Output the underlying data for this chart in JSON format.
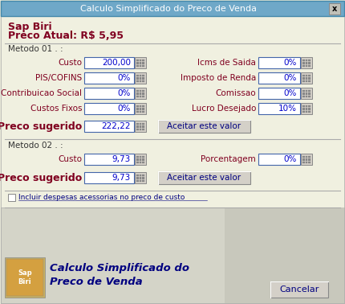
{
  "title": "Calculo Simplificado do Preco de Venda",
  "title_bg": "#6fa8c8",
  "title_fg": "white",
  "bg_color": "#e8e8d8",
  "body_bg": "#f0f0e0",
  "dark_red": "#800020",
  "blue_text": "#0000cc",
  "blue_dark": "#000080",
  "line_color": "#aaaaaa",
  "product_name": "Sap Biri",
  "price_label": "Preco Atual: R$ 5,95",
  "metodo1_label": "Metodo 01 . :",
  "metodo2_label": "Metodo 02 . :",
  "fields_left": [
    "Custo",
    "PIS/COFINS",
    "Contribuicao Social",
    "Custos Fixos"
  ],
  "values_left": [
    "200,00",
    "0%",
    "0%",
    "0%"
  ],
  "fields_right": [
    "Icms de Saida",
    "Imposto de Renda",
    "Comissao",
    "Lucro Desejado"
  ],
  "values_right": [
    "0%",
    "0%",
    "0%",
    "10%"
  ],
  "preco_sugerido1": "222,22",
  "preco_sugerido2": "9,73",
  "metodo2_custo": "9,73",
  "metodo2_porcentagem": "0%",
  "aceitar_btn": "Aceitar este valor",
  "checkbox_text": "Incluir despesas acessorias no preco de custo",
  "footer_title1": "Calculo Simplificado do",
  "footer_title2": "Preco de Venda",
  "cancelar_btn": "Cancelar",
  "btn_bg": "#d4d0c8",
  "input_bg": "white",
  "input_border": "#4466aa",
  "field_color": "#800020"
}
